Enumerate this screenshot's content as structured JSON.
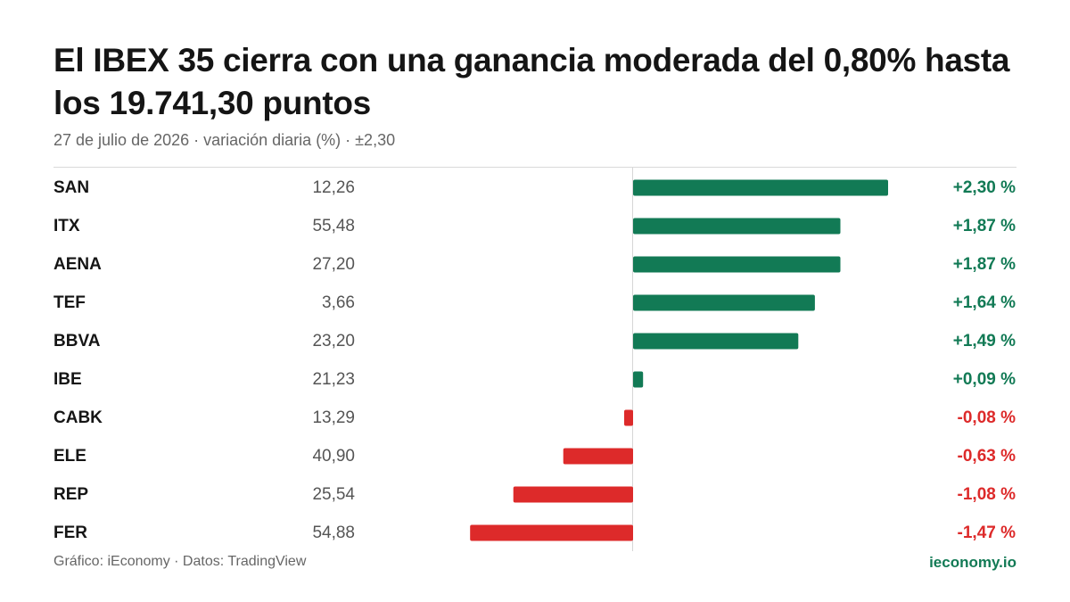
{
  "header": {
    "title": "El IBEX 35 cierra con una ganancia moderada del 0,80% hasta los 19.741,30  puntos",
    "subtitle": "27 de julio de 2026 · variación diaria (%) · ±2,30"
  },
  "footer": {
    "credit": "Gráfico: iEconomy · Datos: TradingView",
    "brand": "ieconomy.io"
  },
  "colors": {
    "positive": "#127a55",
    "negative": "#dd2a2a"
  },
  "chart_data": {
    "type": "bar",
    "orientation": "horizontal",
    "title": "El IBEX 35 cierra con una ganancia moderada del 0,80% hasta los 19.741,30  puntos",
    "subtitle": "27 de julio de 2026 · variación diaria (%) · ±2,30",
    "categories": [
      "SAN",
      "ITX",
      "AENA",
      "TEF",
      "BBVA",
      "IBE",
      "CABK",
      "ELE",
      "REP",
      "FER"
    ],
    "prices": [
      "12,26",
      "55,48",
      "27,20",
      "3,66",
      "23,20",
      "21,23",
      "13,29",
      "40,90",
      "25,54",
      "54,88"
    ],
    "values": [
      2.3,
      1.87,
      1.87,
      1.64,
      1.49,
      0.09,
      -0.08,
      -0.63,
      -1.08,
      -1.47
    ],
    "value_labels": [
      "+2,30 %",
      "+1,87 %",
      "+1,87 %",
      "+1,64 %",
      "+1,49 %",
      "+0,09 %",
      "-0,08 %",
      "-0,63 %",
      "-1,08 %",
      "-1,47 %"
    ],
    "xlim": [
      -2.3,
      2.3
    ],
    "grid": false,
    "legend": "none"
  }
}
